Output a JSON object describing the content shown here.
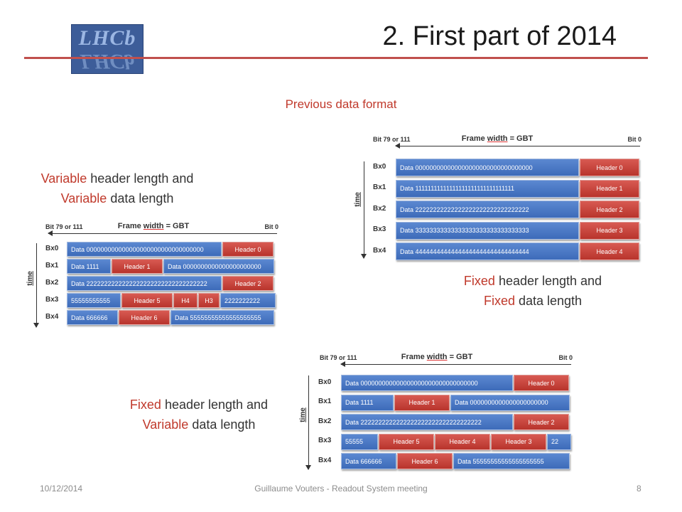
{
  "logo": {
    "text": "LHCb"
  },
  "header": {
    "title": "2. First part of 2014"
  },
  "subtitle": "Previous data format",
  "captions": {
    "variable": {
      "w1": "Variable",
      "r1": " header length and",
      "w2": "Variable",
      "r2": " data length"
    },
    "fixed": {
      "w1": "Fixed",
      "r1": " header length and",
      "w2": "Fixed",
      "r2": " data length"
    },
    "fixed_variable": {
      "w1": "Fixed",
      "r1": " header length and",
      "w2": "Variable",
      "r2": " data length"
    }
  },
  "diagram_common": {
    "bit_left": "Bit 79 or 111",
    "bit_right": "Bit 0",
    "frame_width_a": "Frame ",
    "frame_width_u": "width",
    "frame_width_b": " = GBT",
    "time_label": "time",
    "row_labels": [
      "Bx0",
      "Bx1",
      "Bx2",
      "Bx3",
      "Bx4"
    ]
  },
  "diagrams": {
    "variable": [
      [
        {
          "t": "Data 000000000000000000000000000000000",
          "k": "data",
          "w": 218
        },
        {
          "t": "Header 0",
          "k": "hdr",
          "w": 72
        }
      ],
      [
        {
          "t": "Data 1111",
          "k": "data",
          "w": 62
        },
        {
          "t": "Header 1",
          "k": "hdr",
          "w": 72
        },
        {
          "t": "Data 0000000000000000000000",
          "k": "data",
          "w": 156
        }
      ],
      [
        {
          "t": "Data 2222222222222222222222222222222222",
          "k": "data",
          "w": 218
        },
        {
          "t": "Header 2",
          "k": "hdr",
          "w": 72
        }
      ],
      [
        {
          "t": "55555555555",
          "k": "data",
          "w": 76
        },
        {
          "t": "Header 5",
          "k": "hdr",
          "w": 72
        },
        {
          "t": "H4",
          "k": "hdr",
          "w": 34
        },
        {
          "t": "H3",
          "k": "hdr",
          "w": 30
        },
        {
          "t": "2222222222",
          "k": "data",
          "w": 78
        }
      ],
      [
        {
          "t": "Data 666666",
          "k": "data",
          "w": 72
        },
        {
          "t": "Header 6",
          "k": "hdr",
          "w": 72
        },
        {
          "t": "Data 55555555555555555555",
          "k": "data",
          "w": 146
        }
      ]
    ],
    "fixed": [
      [
        {
          "t": "Data 000000000000000000000000000000000",
          "k": "data",
          "w": 258
        },
        {
          "t": "Header 0",
          "k": "hdr",
          "w": 84
        }
      ],
      [
        {
          "t": "Data 11111111111111111111111111111111",
          "k": "data",
          "w": 258
        },
        {
          "t": "Header 1",
          "k": "hdr",
          "w": 84
        }
      ],
      [
        {
          "t": "Data 22222222222222222222222222222222",
          "k": "data",
          "w": 258
        },
        {
          "t": "Header 2",
          "k": "hdr",
          "w": 84
        }
      ],
      [
        {
          "t": "Data 33333333333333333333333333333333",
          "k": "data",
          "w": 258
        },
        {
          "t": "Header 3",
          "k": "hdr",
          "w": 84
        }
      ],
      [
        {
          "t": "Data 44444444444444444444444444444444",
          "k": "data",
          "w": 258
        },
        {
          "t": "Header 4",
          "k": "hdr",
          "w": 84
        }
      ]
    ],
    "fixed_variable": [
      [
        {
          "t": "Data 000000000000000000000000000000000",
          "k": "data",
          "w": 242
        },
        {
          "t": "Header 0",
          "k": "hdr",
          "w": 78
        }
      ],
      [
        {
          "t": "Data 1111",
          "k": "data",
          "w": 74
        },
        {
          "t": "Header 1",
          "k": "hdr",
          "w": 78
        },
        {
          "t": "Data 0000000000000000000000",
          "k": "data",
          "w": 168
        }
      ],
      [
        {
          "t": "Data 2222222222222222222222222222222222",
          "k": "data",
          "w": 242
        },
        {
          "t": "Header 2",
          "k": "hdr",
          "w": 78
        }
      ],
      [
        {
          "t": "55555",
          "k": "data",
          "w": 52
        },
        {
          "t": "Header 5",
          "k": "hdr",
          "w": 78
        },
        {
          "t": "Header 4",
          "k": "hdr",
          "w": 78
        },
        {
          "t": "Header 3",
          "k": "hdr",
          "w": 78
        },
        {
          "t": "22",
          "k": "data",
          "w": 34
        }
      ],
      [
        {
          "t": "Data 666666",
          "k": "data",
          "w": 78
        },
        {
          "t": "Header 6",
          "k": "hdr",
          "w": 78
        },
        {
          "t": "Data 55555555555555555555",
          "k": "data",
          "w": 164
        }
      ]
    ]
  },
  "footer": {
    "date": "10/12/2014",
    "center": "Guillaume Vouters  -  Readout System meeting",
    "page": "8"
  },
  "colors": {
    "accent": "#c0504d",
    "data_cell": "#4a78c2",
    "header_cell": "#c93b33"
  }
}
